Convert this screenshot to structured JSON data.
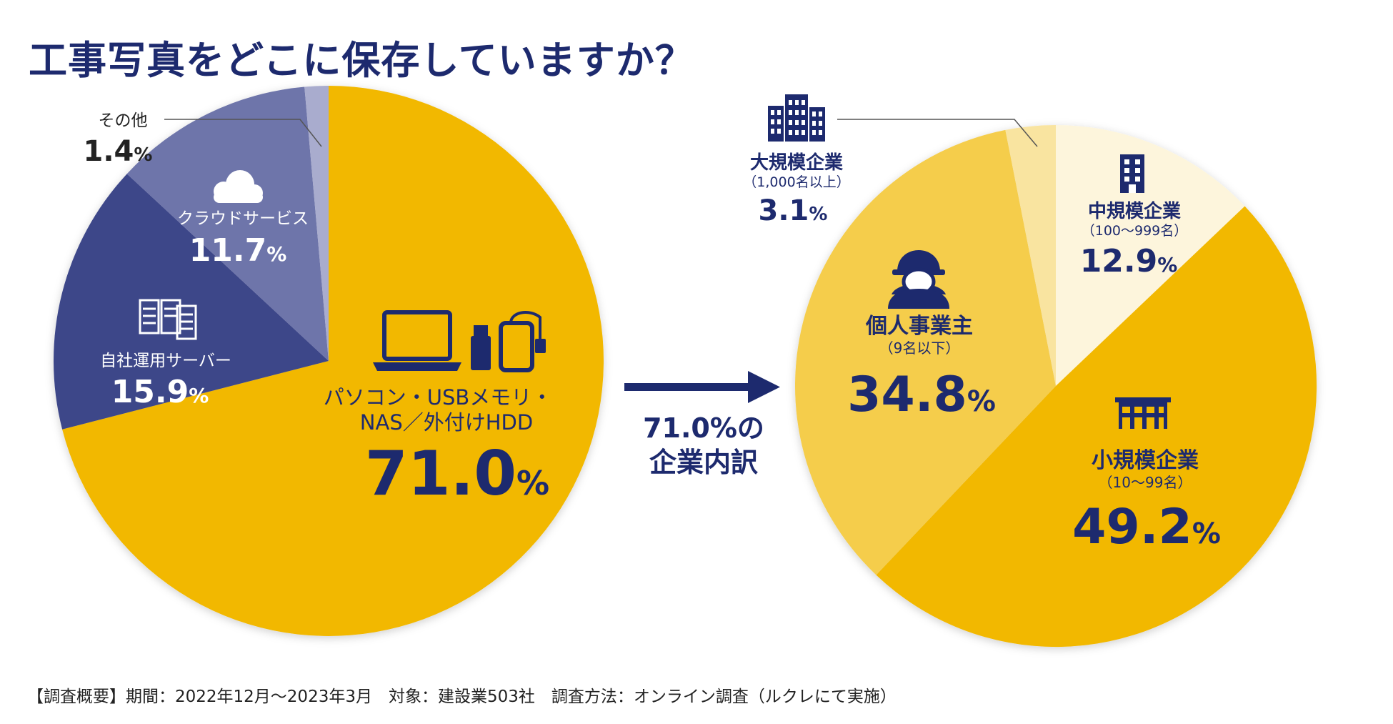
{
  "title": "工事写真をどこに保存していますか？",
  "footnote": "【調査概要】期間：2022年12月〜2023年3月　対象：建設業503社　調査方法：オンライン調査（ルクレにて実施）",
  "arrow": {
    "line1": "71.0%の",
    "line2": "企業内訳"
  },
  "colors": {
    "title": "#1d2a6e",
    "navy": "#1d2a6e",
    "gold": "#f2b800",
    "gold_light": "#f5cd4c",
    "gold_pale": "#f9e4a0",
    "cream": "#fdf5dc",
    "server": "#3d4689",
    "cloud": "#6e74aa",
    "other": "#a9acce"
  },
  "chart_data": [
    {
      "type": "pie",
      "slices": [
        {
          "label": "パソコン・USBメモリ・NAS／外付けHDD",
          "value": 71.0,
          "display": "71.0",
          "icon": "laptop-usb-hdd-icon"
        },
        {
          "label": "自社運用サーバー",
          "value": 15.9,
          "display": "15.9",
          "icon": "server-icon"
        },
        {
          "label": "クラウドサービス",
          "value": 11.7,
          "display": "11.7",
          "icon": "cloud-icon"
        },
        {
          "label": "その他",
          "value": 1.4,
          "display": "1.4"
        }
      ]
    },
    {
      "type": "pie",
      "slices": [
        {
          "label": "中規模企業",
          "sub": "（100〜999名）",
          "value": 12.9,
          "display": "12.9",
          "icon": "mid-building-icon"
        },
        {
          "label": "小規模企業",
          "sub": "（10〜99名）",
          "value": 49.2,
          "display": "49.2",
          "icon": "small-building-icon"
        },
        {
          "label": "個人事業主",
          "sub": "（9名以下）",
          "value": 34.8,
          "display": "34.8",
          "icon": "worker-helmet-icon"
        },
        {
          "label": "大規模企業",
          "sub": "（1,000名以上）",
          "value": 3.1,
          "display": "3.1",
          "icon": "large-building-icon"
        }
      ]
    }
  ]
}
